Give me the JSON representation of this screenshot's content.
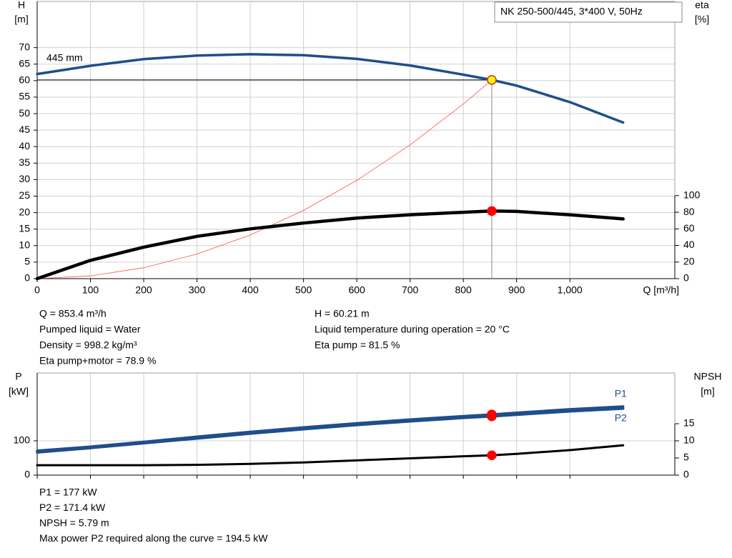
{
  "chart_data": [
    {
      "type": "line",
      "title": "NK 250-500/445, 3*400 V, 50Hz",
      "ylabel": [
        "H",
        "[m]"
      ],
      "y2label": [
        "eta",
        "[%]"
      ],
      "xlabel": "Q [m³/h]",
      "annotation": "445 mm",
      "xlim": [
        0,
        1197
      ],
      "xticks": [
        0,
        100,
        200,
        300,
        400,
        500,
        600,
        700,
        800,
        900,
        {
          "value": 1000,
          "label": "1,000"
        }
      ],
      "show_xtick_labels": true,
      "ylim": [
        0,
        84
      ],
      "yticks": [
        0,
        5,
        10,
        15,
        20,
        25,
        30,
        35,
        40,
        45,
        50,
        55,
        60,
        65,
        70
      ],
      "y2lim": [
        0,
        334
      ],
      "y2ticks": [
        0,
        20,
        40,
        60,
        80,
        100
      ],
      "grid": true,
      "operating_index": 9,
      "x": [
        0,
        100,
        200,
        300,
        400,
        500,
        600,
        700,
        800,
        853.4,
        900,
        1000,
        1100
      ],
      "series": [
        {
          "color": "#1f4e8c",
          "marker_color": "#ffff00",
          "values": [
            62,
            64.5,
            66.5,
            67.6,
            68,
            67.7,
            66.6,
            64.6,
            61.8,
            60.21,
            58.5,
            53.5,
            47.3
          ]
        },
        {
          "color": "#ff4d4d",
          "values": [
            0,
            0.83,
            3.31,
            7.44,
            13.23,
            20.67,
            29.77,
            40.52,
            52.92,
            60.21,
            null,
            null,
            null
          ]
        },
        {
          "color": "#000000",
          "marker_color": "#ff0000",
          "axis": "y2",
          "values": [
            0,
            22,
            38,
            51,
            60,
            67,
            73,
            77,
            80,
            81.5,
            81,
            77,
            72
          ]
        }
      ]
    },
    {
      "type": "line",
      "ylabel": [
        "P",
        "[kW]"
      ],
      "y2label": [
        "NPSH",
        "[m]"
      ],
      "xlim": [
        0,
        1197
      ],
      "xticks": [
        0,
        100,
        200,
        300,
        400,
        500,
        600,
        700,
        800,
        900,
        1000
      ],
      "show_xtick_labels": false,
      "ylim": [
        0,
        298
      ],
      "yticks": [
        0,
        100
      ],
      "y2lim": [
        0,
        29.8
      ],
      "y2ticks": [
        0,
        5,
        10,
        15
      ],
      "grid": true,
      "operating_index": 9,
      "x": [
        0,
        100,
        200,
        300,
        400,
        500,
        600,
        700,
        800,
        853.4,
        900,
        1000,
        1100
      ],
      "series": [
        {
          "name": "P1",
          "color": "#1f4e8c",
          "marker_color": "#ff0000",
          "values": [
            71,
            83,
            97,
            112,
            126,
            139,
            151,
            162,
            172,
            177,
            182,
            192,
            200
          ]
        },
        {
          "name": "P2",
          "color": "#1f4e8c",
          "marker_color": "#ff0000",
          "values": [
            66,
            79,
            93,
            107,
            121,
            134,
            146,
            157,
            167,
            171.4,
            176,
            186,
            194
          ]
        },
        {
          "color": "#000000",
          "marker_color": "#ff0000",
          "axis": "y2",
          "values": [
            2.9,
            2.9,
            2.9,
            3.0,
            3.3,
            3.7,
            4.3,
            4.9,
            5.5,
            5.79,
            6.2,
            7.3,
            8.7
          ]
        }
      ]
    }
  ],
  "info_top_left": [
    "Q = 853.4 m³/h",
    "Pumped liquid = Water",
    "Density = 998.2 kg/m³",
    "Eta pump+motor = 78.9 %"
  ],
  "info_top_right": [
    "H = 60.21 m",
    "Liquid temperature during operation = 20 °C",
    "Eta pump = 81.5 %"
  ],
  "info_bottom": [
    "P1 = 177 kW",
    "P2 = 171.4 kW",
    "NPSH = 5.79 m",
    "Max power P2 required along the curve = 194.5 kW"
  ]
}
